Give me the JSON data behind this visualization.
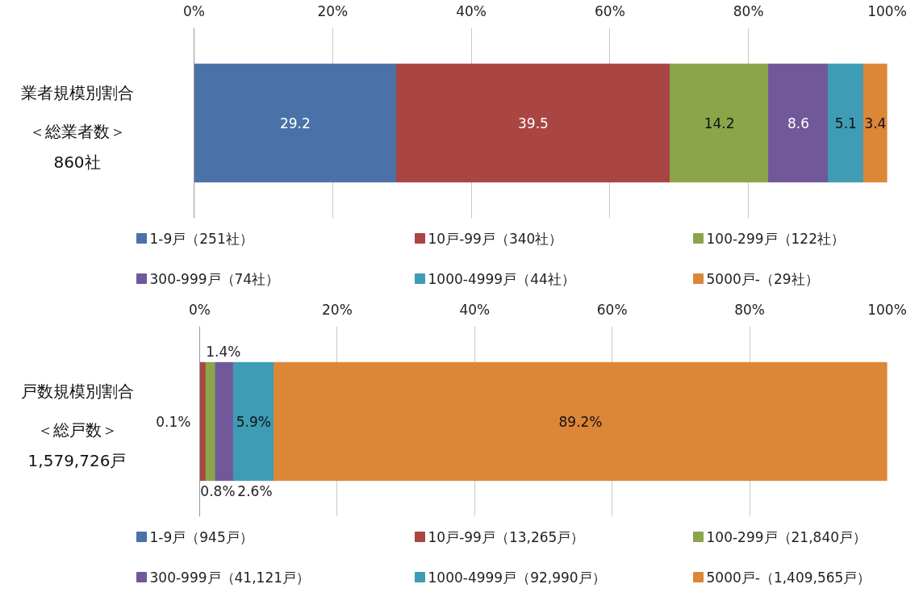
{
  "chart_data": [
    {
      "type": "bar",
      "orientation": "horizontal",
      "stacked": true,
      "categories": [
        "業者規模別割合"
      ],
      "annotations": [
        "＜総業者数＞",
        "860社"
      ],
      "xlim": [
        0,
        100
      ],
      "xticks": [
        {
          "value": 0,
          "label": "0%"
        },
        {
          "value": 20,
          "label": "20%"
        },
        {
          "value": 40,
          "label": "40%"
        },
        {
          "value": 60,
          "label": "60%"
        },
        {
          "value": 80,
          "label": "80%"
        },
        {
          "value": 100,
          "label": "100%"
        }
      ],
      "grid": "x",
      "legend": "bottom",
      "data_labels": true,
      "series": [
        {
          "name": "1-9戸（251社）",
          "color": "#4a72a9",
          "values": [
            29.2
          ]
        },
        {
          "name": "10戸-99戸（340社）",
          "color": "#a94543",
          "values": [
            39.5
          ]
        },
        {
          "name": "100-299戸（122社）",
          "color": "#8ba54a",
          "values": [
            14.2
          ]
        },
        {
          "name": "300-999戸（74社）",
          "color": "#71589a",
          "values": [
            8.6
          ]
        },
        {
          "name": "1000-4999戸（44社）",
          "color": "#3e9cb5",
          "values": [
            5.1
          ]
        },
        {
          "name": "5000戸-（29社）",
          "color": "#dc8638",
          "values": [
            3.4
          ]
        }
      ]
    },
    {
      "type": "bar",
      "orientation": "horizontal",
      "stacked": true,
      "categories": [
        "戸数規模別割合"
      ],
      "annotations": [
        "＜総戸数＞",
        "1,579,726戸"
      ],
      "xlim": [
        0,
        100
      ],
      "xticks": [
        {
          "value": 0,
          "label": "0%"
        },
        {
          "value": 20,
          "label": "20%"
        },
        {
          "value": 40,
          "label": "40%"
        },
        {
          "value": 60,
          "label": "60%"
        },
        {
          "value": 80,
          "label": "80%"
        },
        {
          "value": 100,
          "label": "100%"
        }
      ],
      "grid": "x",
      "legend": "bottom",
      "series": [
        {
          "name": "1-9戸（945戸）",
          "color": "#4a72a9",
          "values": [
            0.1
          ],
          "value_labels": [
            "0.1%"
          ]
        },
        {
          "name": "10戸-99戸（13,265戸）",
          "color": "#a94543",
          "values": [
            0.8
          ],
          "value_labels": [
            "0.8%"
          ]
        },
        {
          "name": "100-299戸（21,840戸）",
          "color": "#8ba54a",
          "values": [
            1.4
          ],
          "value_labels": [
            "1.4%"
          ]
        },
        {
          "name": "300-999戸（41,121戸）",
          "color": "#71589a",
          "values": [
            2.6
          ],
          "value_labels": [
            "2.6%"
          ]
        },
        {
          "name": "1000-4999戸（92,990戸）",
          "color": "#3e9cb5",
          "values": [
            5.9
          ],
          "value_labels": [
            "5.9%"
          ]
        },
        {
          "name": "5000戸-（1,409,565戸）",
          "color": "#dc8638",
          "values": [
            89.2
          ],
          "value_labels": [
            "89.2%"
          ]
        }
      ]
    }
  ]
}
